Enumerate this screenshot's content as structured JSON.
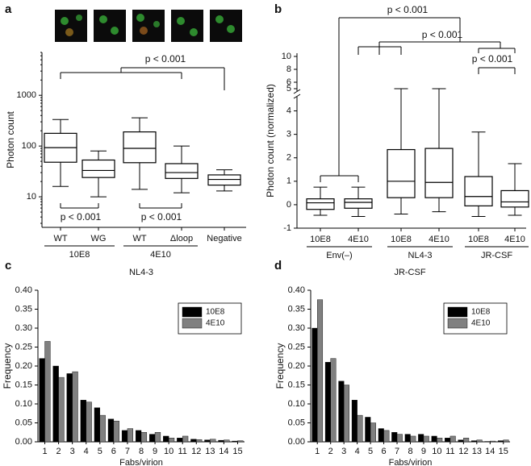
{
  "chart_data": [
    {
      "type": "box",
      "label": "a",
      "ylabel": "Photon count",
      "yscale": "log",
      "ylim": [
        2.5,
        7000
      ],
      "yticks": [
        10,
        100,
        1000
      ],
      "groups": [
        {
          "name": "10E8",
          "categories": [
            "WT",
            "WG"
          ],
          "boxes": [
            {
              "whisker_low": 16,
              "q1": 48,
              "median": 93,
              "q3": 178,
              "whisker_high": 333
            },
            {
              "whisker_low": 10,
              "q1": 24,
              "median": 33,
              "q3": 53,
              "whisker_high": 80
            }
          ]
        },
        {
          "name": "4E10",
          "categories": [
            "WT",
            "Δloop"
          ],
          "boxes": [
            {
              "whisker_low": 14,
              "q1": 47,
              "median": 90,
              "q3": 190,
              "whisker_high": 360
            },
            {
              "whisker_low": 12,
              "q1": 23,
              "median": 30,
              "q3": 45,
              "whisker_high": 100
            }
          ]
        },
        {
          "categories": [
            "Negative"
          ],
          "boxes": [
            {
              "whisker_low": 13,
              "q1": 17,
              "median": 22,
              "q3": 27,
              "whisker_high": 34
            }
          ]
        }
      ],
      "annotations": [
        "p < 0.001",
        "p < 0.001",
        "p < 0.001"
      ]
    },
    {
      "type": "box",
      "label": "b",
      "ylabel": "Photon count (normalized)",
      "ylim": [
        -1,
        10.5
      ],
      "ybreak": [
        4.5,
        5
      ],
      "yticks": [
        -1,
        0,
        1,
        2,
        3,
        4,
        5,
        6,
        8,
        10
      ],
      "groups": [
        {
          "name": "Env(–)",
          "categories": [
            "10E8",
            "4E10"
          ],
          "boxes": [
            {
              "whisker_low": -0.45,
              "q1": -0.2,
              "median": 0.08,
              "q3": 0.25,
              "whisker_high": 0.75
            },
            {
              "whisker_low": -0.5,
              "q1": -0.15,
              "median": 0.1,
              "q3": 0.25,
              "whisker_high": 0.75
            }
          ]
        },
        {
          "name": "NL4-3",
          "categories": [
            "10E8",
            "4E10"
          ],
          "boxes": [
            {
              "whisker_low": -0.4,
              "q1": 0.3,
              "median": 1.0,
              "q3": 2.35,
              "whisker_high": 5
            },
            {
              "whisker_low": -0.3,
              "q1": 0.3,
              "median": 0.95,
              "q3": 2.4,
              "whisker_high": 5
            }
          ]
        },
        {
          "name": "JR-CSF",
          "categories": [
            "10E8",
            "4E10"
          ],
          "boxes": [
            {
              "whisker_low": -0.5,
              "q1": -0.05,
              "median": 0.35,
              "q3": 1.2,
              "whisker_high": 3.1
            },
            {
              "whisker_low": -0.45,
              "q1": -0.1,
              "median": 0.12,
              "q3": 0.6,
              "whisker_high": 1.75
            }
          ]
        }
      ],
      "annotations": [
        "p < 0.001",
        "p < 0.001",
        "p < 0.001"
      ]
    },
    {
      "type": "bar",
      "label": "c",
      "title": "NL4-3",
      "xlabel": "Fabs/virion",
      "ylabel": "Frequency",
      "categories": [
        "1",
        "2",
        "3",
        "4",
        "5",
        "6",
        "7",
        "8",
        "9",
        "10",
        "11",
        "12",
        "13",
        "14",
        "15"
      ],
      "series": [
        {
          "name": "10E8",
          "color": "#000000",
          "values": [
            0.22,
            0.2,
            0.18,
            0.11,
            0.09,
            0.06,
            0.03,
            0.03,
            0.02,
            0.015,
            0.01,
            0.007,
            0.005,
            0.004,
            0.002
          ]
        },
        {
          "name": "4E10",
          "color": "#808080",
          "values": [
            0.265,
            0.17,
            0.185,
            0.105,
            0.07,
            0.055,
            0.035,
            0.025,
            0.025,
            0.01,
            0.015,
            0.006,
            0.007,
            0.005,
            0.003
          ]
        }
      ],
      "ylim": [
        0,
        0.4
      ],
      "yticks": [
        {
          "value": 0,
          "label": "0.00"
        },
        {
          "value": 0.05,
          "label": "0.05"
        },
        {
          "value": 0.1,
          "label": "0.10"
        },
        {
          "value": 0.15,
          "label": "0.15"
        },
        {
          "value": 0.2,
          "label": "0.20"
        },
        {
          "value": 0.25,
          "label": "0.25"
        },
        {
          "value": 0.3,
          "label": "0.30"
        },
        {
          "value": 0.35,
          "label": "0.35"
        },
        {
          "value": 0.4,
          "label": "0.40"
        }
      ],
      "legend": "upper right"
    },
    {
      "type": "bar",
      "label": "d",
      "title": "JR-CSF",
      "xlabel": "Fabs/virion",
      "ylabel": "Frequency",
      "categories": [
        "1",
        "2",
        "3",
        "4",
        "5",
        "6",
        "7",
        "8",
        "9",
        "10",
        "11",
        "12",
        "13",
        "14",
        "15"
      ],
      "series": [
        {
          "name": "10E8",
          "color": "#000000",
          "values": [
            0.3,
            0.21,
            0.16,
            0.11,
            0.065,
            0.035,
            0.025,
            0.02,
            0.02,
            0.015,
            0.01,
            0.005,
            0.003,
            0.001,
            0.003
          ]
        },
        {
          "name": "4E10",
          "color": "#808080",
          "values": [
            0.375,
            0.22,
            0.15,
            0.07,
            0.05,
            0.03,
            0.02,
            0.015,
            0.015,
            0.01,
            0.015,
            0.01,
            0.005,
            0.002,
            0.005
          ]
        }
      ],
      "ylim": [
        0,
        0.4
      ],
      "yticks": [
        {
          "value": 0,
          "label": "0.00"
        },
        {
          "value": 0.05,
          "label": "0.05"
        },
        {
          "value": 0.1,
          "label": "0.10"
        },
        {
          "value": 0.15,
          "label": "0.15"
        },
        {
          "value": 0.2,
          "label": "0.20"
        },
        {
          "value": 0.25,
          "label": "0.25"
        },
        {
          "value": 0.3,
          "label": "0.30"
        },
        {
          "value": 0.35,
          "label": "0.35"
        },
        {
          "value": 0.4,
          "label": "0.40"
        }
      ],
      "legend": "upper right"
    }
  ]
}
